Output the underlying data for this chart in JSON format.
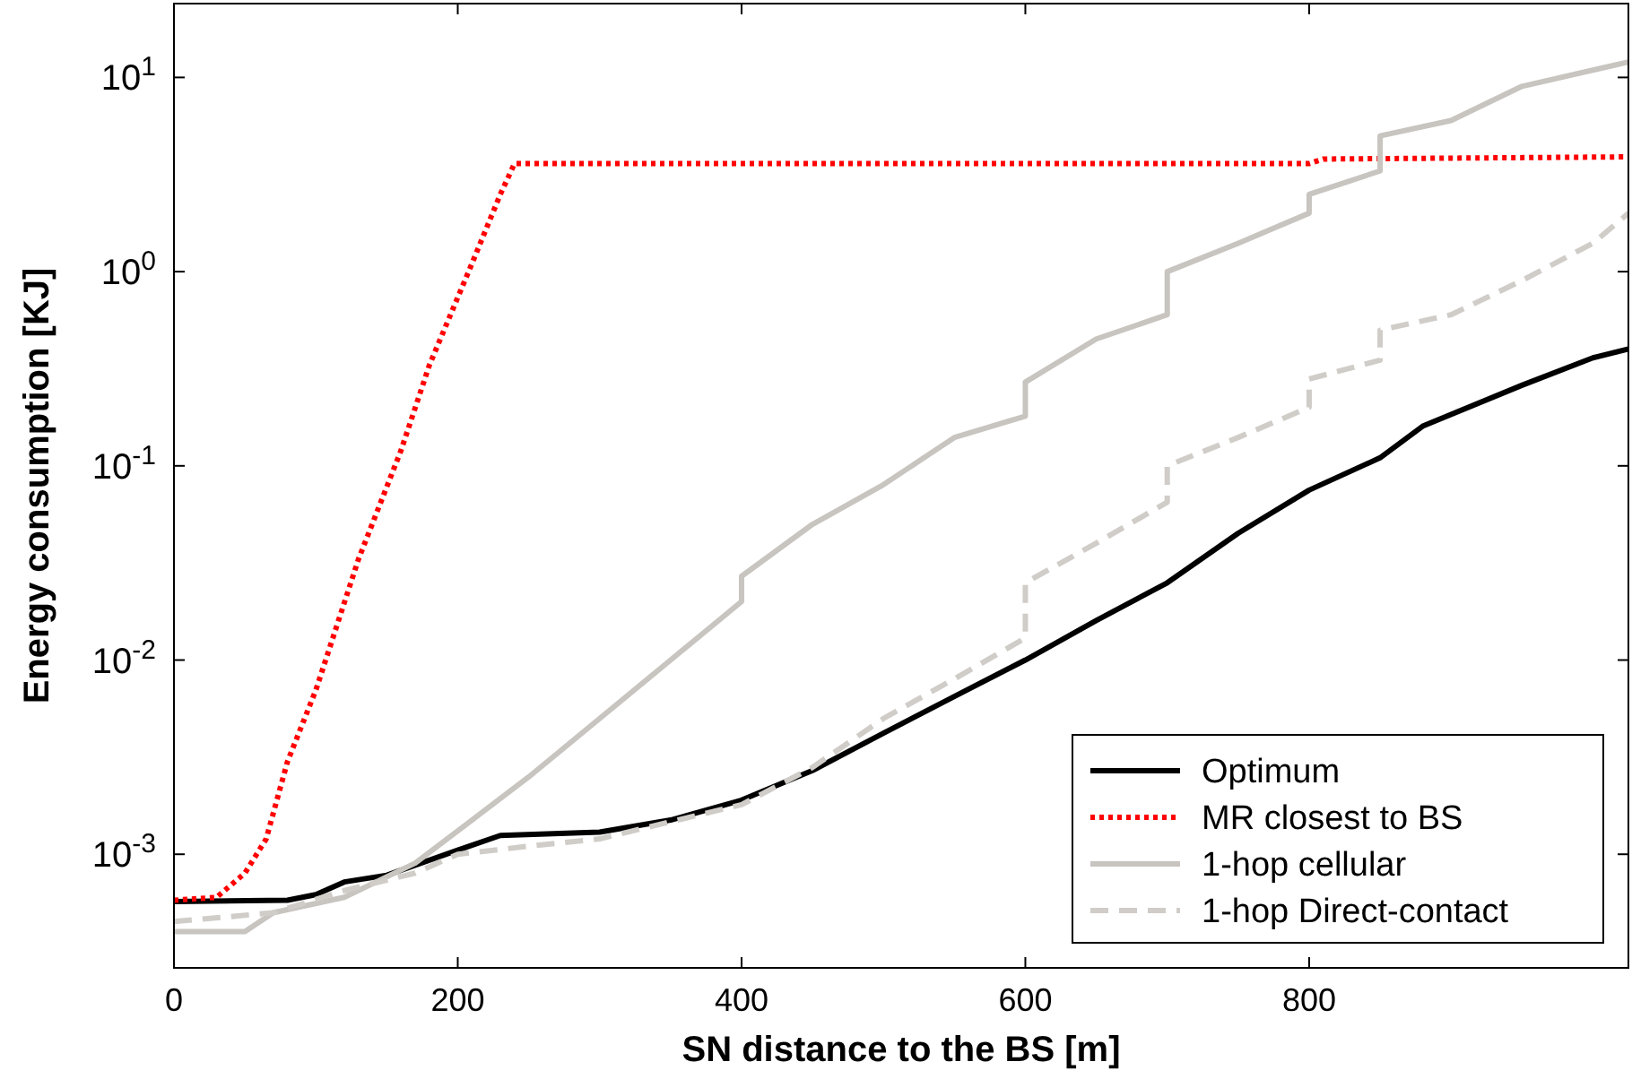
{
  "chart_data": {
    "type": "line",
    "xlabel": "SN distance to the BS [m]",
    "ylabel": "Energy consumption [KJ]",
    "log": "y",
    "xlim": [
      0,
      1025
    ],
    "ylim": [
      0.00026,
      24
    ],
    "xticks": [
      0,
      200,
      400,
      600,
      800
    ],
    "yticks": [
      {
        "value": 0.001,
        "label": "10$^{-3}$"
      },
      {
        "value": 0.01,
        "label": "10$^{-2}$"
      },
      {
        "value": 0.1,
        "label": "10$^{-1}$"
      },
      {
        "value": 1,
        "label": "10$^{0}$"
      },
      {
        "value": 10,
        "label": "10$^{1}$"
      }
    ],
    "grid": false,
    "legend": "bottom right",
    "series": [
      {
        "name": "Optimum",
        "color": "#000000",
        "line_style": "solid",
        "x": [
          0,
          80,
          100,
          120,
          150,
          200,
          230,
          300,
          350,
          400,
          450,
          500,
          550,
          600,
          650,
          700,
          750,
          800,
          850,
          880,
          950,
          1000,
          1025
        ],
        "values": [
          0.00057,
          0.00058,
          0.00062,
          0.00072,
          0.00078,
          0.00105,
          0.00125,
          0.0013,
          0.0015,
          0.0019,
          0.0027,
          0.0042,
          0.0065,
          0.01,
          0.016,
          0.025,
          0.045,
          0.075,
          0.11,
          0.16,
          0.26,
          0.36,
          0.4
        ]
      },
      {
        "name": "MR closest to BS",
        "color": "#ff0000",
        "line_style": "dotted",
        "x": [
          0,
          30,
          50,
          65,
          80,
          100,
          130,
          160,
          180,
          210,
          230,
          240,
          800,
          810,
          1025
        ],
        "values": [
          0.00058,
          0.0006,
          0.0008,
          0.0012,
          0.003,
          0.007,
          0.033,
          0.12,
          0.33,
          1.1,
          2.5,
          3.6,
          3.6,
          3.8,
          3.9
        ]
      },
      {
        "name": "1-hop cellular",
        "color": "#c8c4bf",
        "line_style": "solid",
        "x": [
          0,
          50,
          70,
          120,
          170,
          210,
          250,
          300,
          350,
          400,
          400,
          450,
          500,
          550,
          600,
          600,
          650,
          700,
          700,
          750,
          800,
          800,
          850,
          850,
          900,
          950,
          1025
        ],
        "values": [
          0.0004,
          0.0004,
          0.0005,
          0.0006,
          0.0009,
          0.0015,
          0.0025,
          0.005,
          0.01,
          0.02,
          0.027,
          0.05,
          0.08,
          0.14,
          0.18,
          0.27,
          0.45,
          0.6,
          1.0,
          1.4,
          2,
          2.5,
          3.3,
          5,
          6,
          9,
          12
        ]
      },
      {
        "name": "1-hop Direct-contact",
        "color": "#d0ccc8",
        "line_style": "dashed",
        "x": [
          0,
          70,
          120,
          170,
          200,
          250,
          300,
          400,
          450,
          500,
          550,
          600,
          600,
          650,
          700,
          700,
          750,
          800,
          800,
          850,
          850,
          900,
          950,
          1000,
          1025
        ],
        "values": [
          0.00045,
          0.0005,
          0.00065,
          0.0008,
          0.001,
          0.0011,
          0.0012,
          0.0018,
          0.0028,
          0.005,
          0.008,
          0.013,
          0.025,
          0.04,
          0.065,
          0.1,
          0.14,
          0.2,
          0.28,
          0.35,
          0.5,
          0.6,
          0.9,
          1.4,
          2
        ]
      }
    ]
  }
}
